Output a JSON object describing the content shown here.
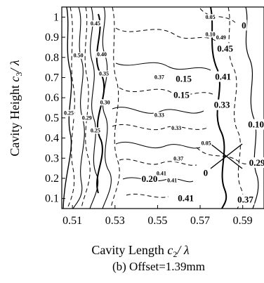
{
  "chart_data": {
    "type": "contour",
    "xlabel_main": "Cavity Length ",
    "xlabel_var": "c",
    "xlabel_sub": "2",
    "xlabel_tail": "/ λ",
    "ylabel_main": "Cavity Height ",
    "ylabel_var": "c",
    "ylabel_sub": "3",
    "ylabel_tail": "/ λ",
    "caption": "(b) Offset=1.39mm",
    "xlim": [
      0.505,
      0.6
    ],
    "ylim": [
      0.05,
      1.05
    ],
    "x_ticks": [
      {
        "value": 0.51,
        "label": "0.51"
      },
      {
        "value": 0.53,
        "label": "0.53"
      },
      {
        "value": 0.55,
        "label": "0.55"
      },
      {
        "value": 0.57,
        "label": "0.57"
      },
      {
        "value": 0.59,
        "label": "0.59"
      }
    ],
    "y_ticks": [
      {
        "value": 0.1,
        "label": "0.1"
      },
      {
        "value": 0.2,
        "label": "0.2"
      },
      {
        "value": 0.3,
        "label": "0.3"
      },
      {
        "value": 0.4,
        "label": "0.4"
      },
      {
        "value": 0.5,
        "label": "0.5"
      },
      {
        "value": 0.6,
        "label": "0.6"
      },
      {
        "value": 0.7,
        "label": "0.7"
      },
      {
        "value": 0.8,
        "label": "0.8"
      },
      {
        "value": 0.9,
        "label": "0.9"
      },
      {
        "value": 1,
        "label": "1"
      }
    ],
    "contour_labels": [
      {
        "text": "0.45",
        "x": 0.5185,
        "y": 0.97,
        "size": "small"
      },
      {
        "text": "0.50",
        "x": 0.5105,
        "y": 0.81,
        "size": "small"
      },
      {
        "text": "0.40",
        "x": 0.5215,
        "y": 0.815,
        "size": "small"
      },
      {
        "text": "0.35",
        "x": 0.5225,
        "y": 0.72,
        "size": "small"
      },
      {
        "text": "0.30",
        "x": 0.523,
        "y": 0.578,
        "size": "small"
      },
      {
        "text": "0.29",
        "x": 0.5145,
        "y": 0.5,
        "size": "small"
      },
      {
        "text": "0.25",
        "x": 0.506,
        "y": 0.525,
        "size": "small"
      },
      {
        "text": "0.25",
        "x": 0.5185,
        "y": 0.438,
        "size": "small"
      },
      {
        "text": "0.20",
        "x": 0.5425,
        "y": 0.198,
        "size": "large"
      },
      {
        "text": "0.37",
        "x": 0.5485,
        "y": 0.703,
        "size": "small"
      },
      {
        "text": "0.33",
        "x": 0.5485,
        "y": 0.515,
        "size": "small"
      },
      {
        "text": "0.33",
        "x": 0.5565,
        "y": 0.45,
        "size": "small"
      },
      {
        "text": "0.37",
        "x": 0.5575,
        "y": 0.298,
        "size": "small"
      },
      {
        "text": "0.41",
        "x": 0.5495,
        "y": 0.226,
        "size": "small"
      },
      {
        "text": "0.41",
        "x": 0.5545,
        "y": 0.19,
        "size": "small"
      },
      {
        "text": "0.41",
        "x": 0.5595,
        "y": 0.103,
        "size": "large"
      },
      {
        "text": "0.05",
        "x": 0.5725,
        "y": 1.0,
        "size": "small"
      },
      {
        "text": "0.10",
        "x": 0.5725,
        "y": 0.915,
        "size": "small"
      },
      {
        "text": "0.49",
        "x": 0.5775,
        "y": 0.9,
        "size": "small"
      },
      {
        "text": "0",
        "x": 0.5895,
        "y": 0.96,
        "size": "large"
      },
      {
        "text": "0.45",
        "x": 0.578,
        "y": 0.845,
        "size": "large"
      },
      {
        "text": "0.41",
        "x": 0.577,
        "y": 0.705,
        "size": "large"
      },
      {
        "text": "0.15",
        "x": 0.5585,
        "y": 0.695,
        "size": "large"
      },
      {
        "text": "0.15",
        "x": 0.5575,
        "y": 0.615,
        "size": "large"
      },
      {
        "text": "0.33",
        "x": 0.5765,
        "y": 0.565,
        "size": "large"
      },
      {
        "text": "0.10",
        "x": 0.5925,
        "y": 0.468,
        "size": "large"
      },
      {
        "text": "0.05",
        "x": 0.5705,
        "y": 0.375,
        "size": "small"
      },
      {
        "text": "0.29",
        "x": 0.593,
        "y": 0.278,
        "size": "large"
      },
      {
        "text": "0",
        "x": 0.5715,
        "y": 0.228,
        "size": "large"
      },
      {
        "text": "0.37",
        "x": 0.5875,
        "y": 0.095,
        "size": "large"
      }
    ]
  }
}
